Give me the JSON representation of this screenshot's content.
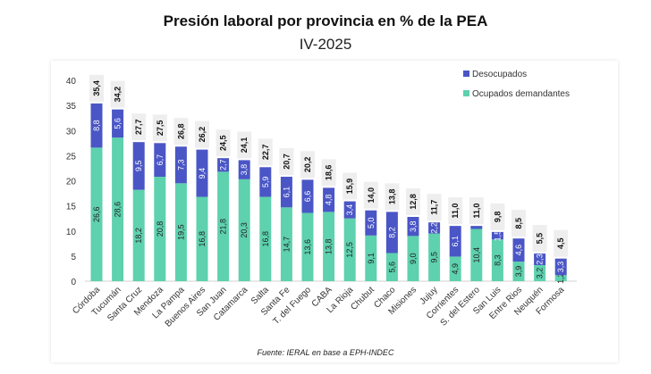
{
  "chart_data": {
    "type": "bar",
    "stacked": true,
    "title": "Presión laboral por provincia en % de la PEA",
    "subtitle": "IV-2025",
    "source": "Fuente: IERAL en base a EPH-INDEC",
    "categories": [
      "Córdoba",
      "Tucumán",
      "Santa Cruz",
      "Mendoza",
      "La Pampa",
      "Buenos Aires",
      "San Juan",
      "Catamarca",
      "Salta",
      "Santa Fe",
      "T. del Fuego",
      "CABA",
      "La Rioja",
      "Chubut",
      "Chaco",
      "Misiones",
      "Jujuy",
      "Corrientes",
      "S. del Estero",
      "San Luis",
      "Entre Rios",
      "Neuquén",
      "Formosa"
    ],
    "series": [
      {
        "name": "Ocupados demandantes",
        "color": "#5ed1ae",
        "values": [
          26.6,
          28.6,
          18.2,
          20.8,
          19.5,
          16.8,
          21.8,
          20.3,
          16.8,
          14.7,
          13.6,
          13.8,
          12.5,
          9.1,
          5.6,
          9.0,
          9.5,
          4.9,
          10.4,
          8.3,
          3.9,
          3.2,
          1.2
        ]
      },
      {
        "name": "Desocupados",
        "color": "#4a56c6",
        "values": [
          8.8,
          5.6,
          9.5,
          6.7,
          7.3,
          9.4,
          2.7,
          3.8,
          5.9,
          6.1,
          6.6,
          4.8,
          3.4,
          5.0,
          8.2,
          3.8,
          2.2,
          6.1,
          0.6,
          1.5,
          4.6,
          2.3,
          3.3
        ]
      }
    ],
    "totals": [
      35.4,
      34.2,
      27.7,
      27.5,
      26.8,
      26.2,
      24.5,
      24.1,
      22.7,
      20.7,
      20.2,
      18.6,
      15.9,
      14.0,
      13.8,
      12.8,
      11.7,
      11.0,
      11.0,
      9.8,
      8.5,
      5.5,
      4.5
    ],
    "segment_labels_shown": {
      "Desocupados": [
        true,
        true,
        true,
        true,
        true,
        true,
        true,
        true,
        true,
        true,
        true,
        true,
        true,
        true,
        true,
        true,
        true,
        true,
        false,
        true,
        true,
        true,
        true
      ]
    },
    "yticks": [
      0,
      5,
      10,
      15,
      20,
      25,
      30,
      35,
      40
    ],
    "ylim": [
      0,
      40
    ],
    "grid": false,
    "legend_position": "top-right"
  }
}
